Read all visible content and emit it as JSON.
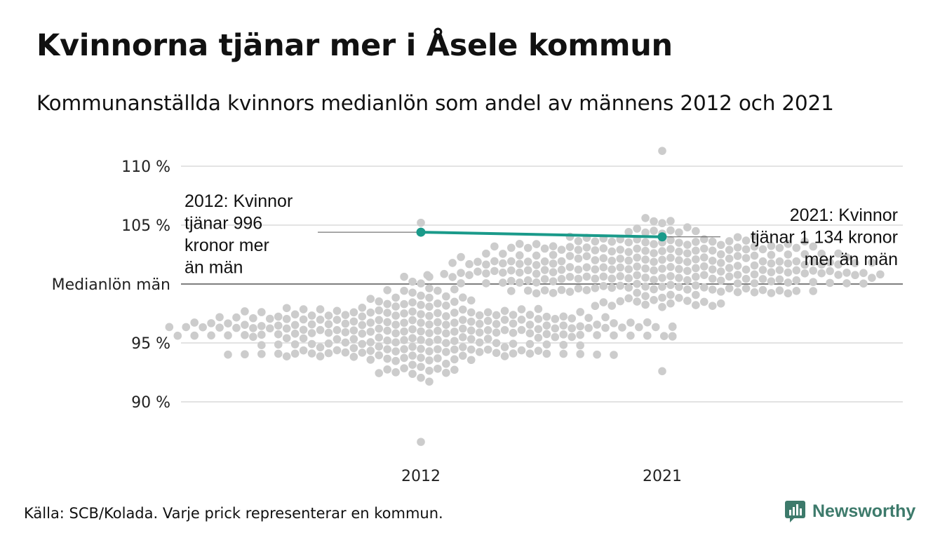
{
  "title": "Kvinnorna tjänar mer i Åsele kommun",
  "subtitle": "Kommunanställda kvinnors medianlön som andel av männens 2012 och 2021",
  "source": "Källa: SCB/Kolada. Varje prick representerar en kommun.",
  "brand": "Newsworthy",
  "colors": {
    "dots": "#cccccc",
    "highlight": "#1a9a8a",
    "grid": "#e3e3e3",
    "baseline": "#333333",
    "brand": "#3d7a6b"
  },
  "chart_data": {
    "type": "scatter",
    "subtype": "beeswarm",
    "categories": [
      "2012",
      "2021"
    ],
    "y_ticks": [
      {
        "value": 90,
        "label": "90 %"
      },
      {
        "value": 95,
        "label": "95 %"
      },
      {
        "value": 100,
        "label": "Medianlön män"
      },
      {
        "value": 105,
        "label": "105 %"
      },
      {
        "value": 110,
        "label": "110 %"
      }
    ],
    "ylim": [
      86,
      112
    ],
    "baseline": 100,
    "grid": true,
    "highlight": {
      "points": [
        {
          "x": "2012",
          "y": 104.4
        },
        {
          "x": "2021",
          "y": 104.0
        }
      ]
    },
    "distribution": {
      "2012": {
        "n": 290,
        "center": 96.0,
        "min": 86.6,
        "max": 105.2
      },
      "2021": {
        "n": 290,
        "center": 101.3,
        "min": 92.6,
        "max": 111.3
      }
    },
    "annotations": [
      {
        "x": "2012",
        "lines": [
          "2012: Kvinnor",
          "tjänar 996",
          "kronor mer",
          "än män"
        ]
      },
      {
        "x": "2021",
        "lines": [
          "2021: Kvinnor",
          "tjänar 1 134 kronor",
          "mer än män"
        ]
      }
    ]
  }
}
